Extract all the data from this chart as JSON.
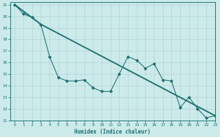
{
  "xlabel": "Humidex (Indice chaleur)",
  "xlim": [
    -0.5,
    23
  ],
  "ylim": [
    11,
    21.2
  ],
  "xticks": [
    0,
    1,
    2,
    3,
    4,
    5,
    6,
    7,
    8,
    9,
    10,
    11,
    12,
    13,
    14,
    15,
    16,
    17,
    18,
    19,
    20,
    21,
    22,
    23
  ],
  "yticks": [
    11,
    12,
    13,
    14,
    15,
    16,
    17,
    18,
    19,
    20,
    21
  ],
  "bg_color": "#cceaea",
  "line_color": "#1e7070",
  "grid_color": "#b0d4d4",
  "line2_x": [
    0,
    3,
    23
  ],
  "line2_y": [
    21.0,
    19.3,
    11.4
  ],
  "marker_x": [
    0,
    1,
    2,
    3,
    4,
    5,
    6,
    7,
    8,
    9,
    10,
    11,
    12,
    13,
    14,
    15,
    16,
    17,
    18,
    19,
    20,
    21,
    22,
    23
  ],
  "marker_y": [
    21.0,
    20.2,
    19.9,
    19.3,
    16.5,
    14.7,
    14.4,
    14.4,
    14.5,
    13.8,
    13.5,
    13.5,
    15.0,
    16.5,
    16.2,
    15.5,
    15.9,
    14.5,
    14.4,
    12.1,
    13.0,
    12.0,
    11.2,
    11.4
  ]
}
